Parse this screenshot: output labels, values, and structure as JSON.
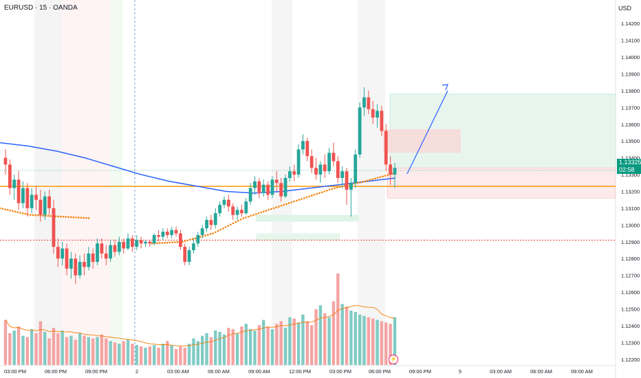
{
  "header": {
    "symbol_line": "EURUSD · 15 · OANDA",
    "currency": "USD"
  },
  "price_tag": {
    "price": "1.13325",
    "countdown": "02:58"
  },
  "colors": {
    "up": "#26a69a",
    "down": "#ef5350",
    "ma_blue": "#2962ff",
    "dots_orange": "#f57c00",
    "level_orange": "#ff9800",
    "tp_fill": "#e8f5ef",
    "sl_fill": "#fdeaea",
    "arrow": "#2962ff"
  },
  "icons": {
    "alert": "lightning-icon"
  },
  "chart_data": {
    "type": "candlestick",
    "title": "EURUSD · 15 · OANDA",
    "y_axis": {
      "range": [
        1.1215,
        1.1425
      ],
      "ticks": [
        "1.14200",
        "1.14100",
        "1.14000",
        "1.13900",
        "1.13800",
        "1.13700",
        "1.13600",
        "1.13500",
        "1.13400",
        "1.13300",
        "1.13200",
        "1.13100",
        "1.13000",
        "1.12900",
        "1.12800",
        "1.12700",
        "1.12600",
        "1.12500",
        "1.12400",
        "1.12300",
        "1.12200"
      ]
    },
    "x_axis": {
      "ticks": [
        "03:00 PM",
        "06:00 PM",
        "09:00 PM",
        "2",
        "03:00 AM",
        "06:00 AM",
        "09:00 AM",
        "12:00 PM",
        "03:00 PM",
        "06:00 PM",
        "09:00 PM",
        "5",
        "03:00 AM",
        "06:00 AM",
        "09:00 AM"
      ]
    },
    "current_price": 1.13325,
    "horizontal_levels": [
      {
        "price": 1.1323,
        "style": "solid",
        "color": "#ff9800"
      },
      {
        "price": 1.1291,
        "style": "dotted",
        "color": "#e53935"
      }
    ],
    "candles": [
      [
        1.134,
        1.1345,
        1.133,
        1.1336
      ],
      [
        1.1336,
        1.1339,
        1.1318,
        1.1322
      ],
      [
        1.1322,
        1.133,
        1.1315,
        1.1327
      ],
      [
        1.1327,
        1.1332,
        1.1309,
        1.1313
      ],
      [
        1.1313,
        1.1326,
        1.131,
        1.1322
      ],
      [
        1.1322,
        1.1325,
        1.1305,
        1.131
      ],
      [
        1.131,
        1.1322,
        1.1307,
        1.1318
      ],
      [
        1.1318,
        1.1323,
        1.1309,
        1.1315
      ],
      [
        1.1315,
        1.1321,
        1.1302,
        1.1306
      ],
      [
        1.1306,
        1.132,
        1.1303,
        1.1317
      ],
      [
        1.1317,
        1.1321,
        1.1306,
        1.131
      ],
      [
        1.131,
        1.1315,
        1.1283,
        1.1287
      ],
      [
        1.1287,
        1.1292,
        1.1275,
        1.128
      ],
      [
        1.128,
        1.129,
        1.1276,
        1.1286
      ],
      [
        1.1286,
        1.1289,
        1.127,
        1.1274
      ],
      [
        1.1274,
        1.1284,
        1.1268,
        1.128
      ],
      [
        1.128,
        1.1283,
        1.1265,
        1.127
      ],
      [
        1.127,
        1.1282,
        1.1268,
        1.1278
      ],
      [
        1.1278,
        1.1283,
        1.127,
        1.1275
      ],
      [
        1.1275,
        1.1287,
        1.1273,
        1.1283
      ],
      [
        1.1283,
        1.1286,
        1.1274,
        1.1278
      ],
      [
        1.1278,
        1.1292,
        1.1276,
        1.1289
      ],
      [
        1.1289,
        1.1292,
        1.128,
        1.1283
      ],
      [
        1.1283,
        1.1288,
        1.1276,
        1.128
      ],
      [
        1.128,
        1.1291,
        1.1278,
        1.1288
      ],
      [
        1.1288,
        1.1291,
        1.1281,
        1.1284
      ],
      [
        1.1284,
        1.1293,
        1.1282,
        1.129
      ],
      [
        1.129,
        1.1292,
        1.1283,
        1.1286
      ],
      [
        1.1286,
        1.1295,
        1.1285,
        1.1292
      ],
      [
        1.1292,
        1.1294,
        1.1284,
        1.1287
      ],
      [
        1.1287,
        1.1294,
        1.1285,
        1.1291
      ],
      [
        1.1291,
        1.1293,
        1.1286,
        1.1289
      ],
      [
        1.1289,
        1.1291,
        1.1287,
        1.129
      ],
      [
        1.129,
        1.1291,
        1.1287,
        1.1289
      ],
      [
        1.1289,
        1.1295,
        1.1288,
        1.1294
      ],
      [
        1.1294,
        1.1297,
        1.129,
        1.1293
      ],
      [
        1.1293,
        1.1298,
        1.1291,
        1.1296
      ],
      [
        1.1296,
        1.1298,
        1.1292,
        1.1294
      ],
      [
        1.1294,
        1.1299,
        1.1292,
        1.1297
      ],
      [
        1.1297,
        1.1299,
        1.1293,
        1.1295
      ],
      [
        1.1295,
        1.1297,
        1.1285,
        1.1287
      ],
      [
        1.1287,
        1.1289,
        1.1276,
        1.1278
      ],
      [
        1.1278,
        1.1287,
        1.1276,
        1.1285
      ],
      [
        1.1285,
        1.1292,
        1.1283,
        1.1289
      ],
      [
        1.1289,
        1.1296,
        1.1287,
        1.1294
      ],
      [
        1.1294,
        1.13,
        1.1292,
        1.1298
      ],
      [
        1.1298,
        1.1305,
        1.1296,
        1.1303
      ],
      [
        1.1303,
        1.1306,
        1.1297,
        1.13
      ],
      [
        1.13,
        1.131,
        1.1298,
        1.1307
      ],
      [
        1.1307,
        1.1314,
        1.1305,
        1.1312
      ],
      [
        1.1312,
        1.1317,
        1.131,
        1.1315
      ],
      [
        1.1315,
        1.1318,
        1.1308,
        1.1311
      ],
      [
        1.1311,
        1.1313,
        1.1303,
        1.1306
      ],
      [
        1.1306,
        1.1311,
        1.1303,
        1.1309
      ],
      [
        1.1309,
        1.1312,
        1.1305,
        1.1307
      ],
      [
        1.1307,
        1.1316,
        1.1306,
        1.1314
      ],
      [
        1.1314,
        1.1325,
        1.1312,
        1.1322
      ],
      [
        1.1322,
        1.1329,
        1.1318,
        1.1326
      ],
      [
        1.1326,
        1.1328,
        1.1316,
        1.1319
      ],
      [
        1.1319,
        1.1327,
        1.1317,
        1.1324
      ],
      [
        1.1324,
        1.1326,
        1.1315,
        1.1318
      ],
      [
        1.1318,
        1.1329,
        1.1316,
        1.1327
      ],
      [
        1.1327,
        1.1332,
        1.132,
        1.1325
      ],
      [
        1.1325,
        1.1328,
        1.1314,
        1.1317
      ],
      [
        1.1317,
        1.133,
        1.1316,
        1.1328
      ],
      [
        1.1328,
        1.1335,
        1.1326,
        1.1332
      ],
      [
        1.1332,
        1.1336,
        1.1326,
        1.133
      ],
      [
        1.133,
        1.1348,
        1.1328,
        1.1345
      ],
      [
        1.1345,
        1.1354,
        1.1342,
        1.135
      ],
      [
        1.135,
        1.1352,
        1.1338,
        1.1341
      ],
      [
        1.1341,
        1.1345,
        1.1331,
        1.1334
      ],
      [
        1.1334,
        1.134,
        1.1327,
        1.133
      ],
      [
        1.133,
        1.1338,
        1.1325,
        1.1336
      ],
      [
        1.1336,
        1.1342,
        1.1328,
        1.1332
      ],
      [
        1.1332,
        1.1346,
        1.133,
        1.1343
      ],
      [
        1.1343,
        1.1349,
        1.1335,
        1.1338
      ],
      [
        1.1338,
        1.1341,
        1.1325,
        1.1328
      ],
      [
        1.1328,
        1.1335,
        1.1322,
        1.1332
      ],
      [
        1.1332,
        1.1334,
        1.1312,
        1.1321
      ],
      [
        1.1321,
        1.1328,
        1.1305,
        1.1325
      ],
      [
        1.1325,
        1.1345,
        1.1322,
        1.1342
      ],
      [
        1.1342,
        1.1373,
        1.134,
        1.137
      ],
      [
        1.137,
        1.1382,
        1.1365,
        1.1376
      ],
      [
        1.1376,
        1.138,
        1.1366,
        1.1369
      ],
      [
        1.1369,
        1.1374,
        1.136,
        1.1364
      ],
      [
        1.1364,
        1.1372,
        1.1358,
        1.1368
      ],
      [
        1.1368,
        1.1371,
        1.1353,
        1.1356
      ],
      [
        1.1356,
        1.136,
        1.1332,
        1.1336
      ],
      [
        1.1336,
        1.1341,
        1.1324,
        1.133
      ],
      [
        1.133,
        1.1337,
        1.1322,
        1.1334
      ]
    ],
    "moving_average_blue": [
      1.1349,
      1.1347,
      1.1344,
      1.134,
      1.1335,
      1.133,
      1.1326,
      1.1323,
      1.132,
      1.1319,
      1.132,
      1.1322,
      1.1324,
      1.1326,
      1.1328
    ],
    "dotted_average_orange": [
      1.131,
      1.1306,
      1.1305,
      1.1304,
      null,
      1.1289,
      1.129,
      1.1295,
      1.1304,
      1.131,
      1.1316,
      1.1322,
      1.1326,
      1.1331
    ],
    "volume": [
      34,
      24,
      26,
      29,
      22,
      21,
      27,
      24,
      33,
      25,
      20,
      28,
      24,
      26,
      21,
      22,
      19,
      24,
      22,
      21,
      20,
      21,
      23,
      20,
      18,
      17,
      16,
      18,
      19,
      16,
      15,
      14,
      13,
      14,
      15,
      13,
      16,
      18,
      15,
      12,
      14,
      13,
      16,
      20,
      18,
      22,
      24,
      21,
      26,
      25,
      23,
      28,
      27,
      24,
      29,
      31,
      27,
      26,
      30,
      34,
      29,
      27,
      31,
      33,
      28,
      36,
      35,
      32,
      38,
      33,
      30,
      42,
      45,
      39,
      36,
      48,
      69,
      46,
      44,
      41,
      40,
      38,
      37,
      36,
      35,
      34,
      33,
      32,
      31,
      36
    ]
  }
}
